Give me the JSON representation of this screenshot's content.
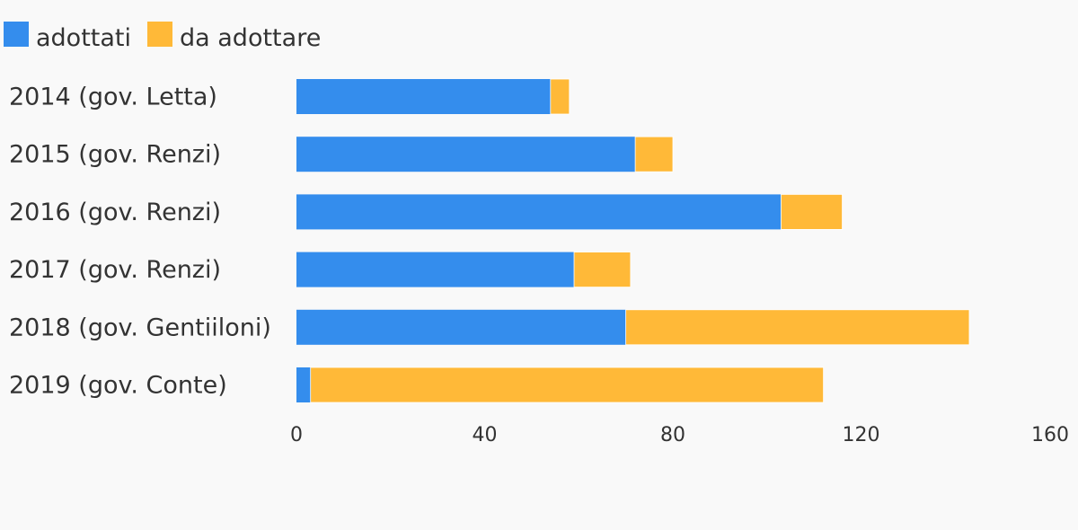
{
  "colors": {
    "background": "#f9f9f9",
    "adottati": "#348ded",
    "da_adottare": "#ffb938",
    "text": "#333333"
  },
  "chart_data": {
    "type": "bar",
    "orientation": "horizontal",
    "stacked": true,
    "categories": [
      "2014 (gov. Letta)",
      "2015 (gov. Renzi)",
      "2016 (gov. Renzi)",
      "2017 (gov. Renzi)",
      "2018 (gov. Gentiiloni)",
      "2019 (gov. Conte)"
    ],
    "series": [
      {
        "name": "adottati",
        "color": "#348ded",
        "values": [
          54,
          72,
          103,
          59,
          70,
          3
        ]
      },
      {
        "name": "da adottare",
        "color": "#ffb938",
        "values": [
          4,
          8,
          13,
          12,
          73,
          109
        ]
      }
    ],
    "xlim": [
      0,
      160
    ],
    "xticks": [
      "0",
      "40",
      "80",
      "120",
      "160"
    ],
    "legend_position": "top-left",
    "grid": false
  }
}
